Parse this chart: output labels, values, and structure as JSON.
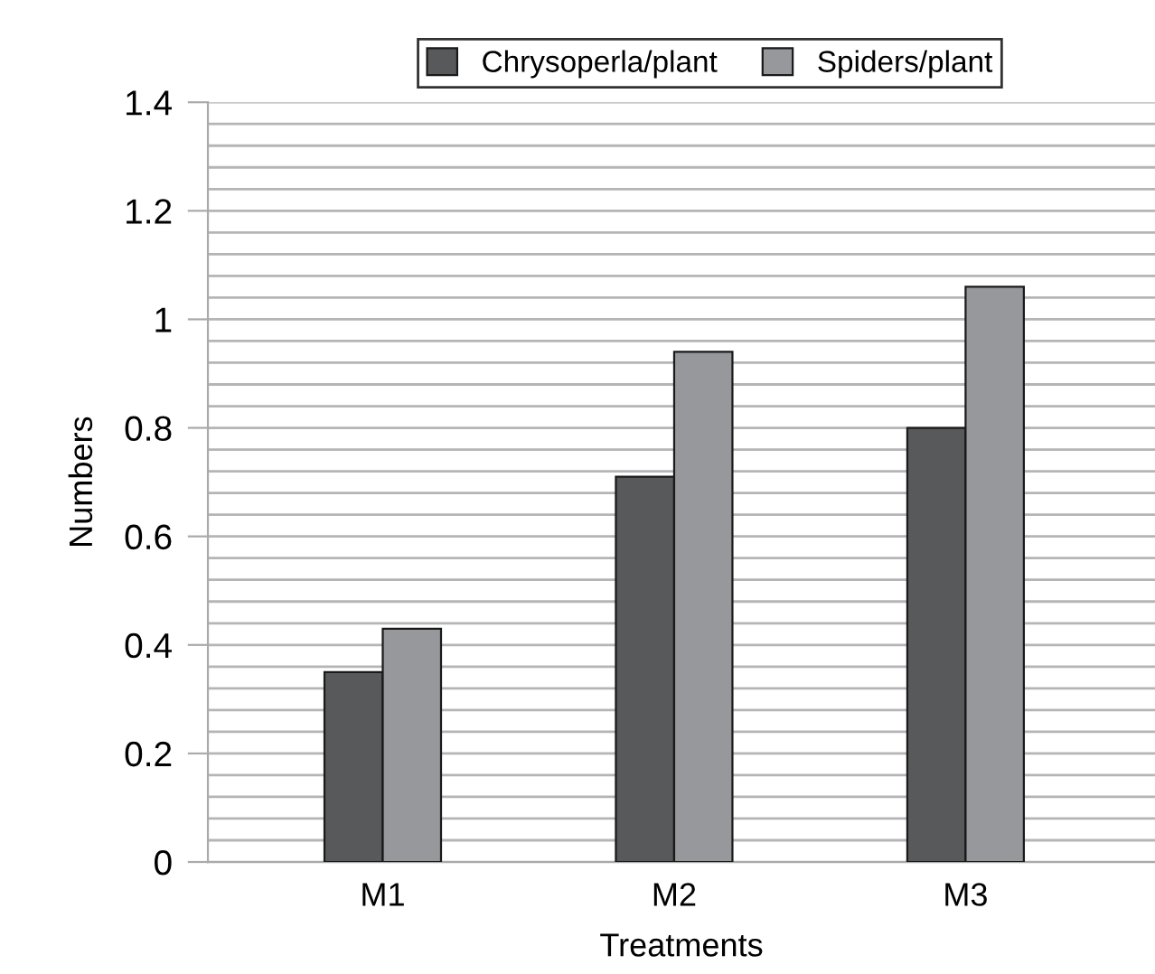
{
  "chart_data": {
    "type": "bar",
    "xlabel": "Treatments",
    "ylabel": "Numbers",
    "categories": [
      "M1",
      "M2",
      "M3"
    ],
    "series": [
      {
        "name": "Chrysoperla/plant",
        "color": "#58595b",
        "values": [
          0.35,
          0.71,
          0.8
        ]
      },
      {
        "name": "Spiders/plant",
        "color": "#97989c",
        "values": [
          0.43,
          0.94,
          1.06
        ]
      }
    ],
    "ylim": [
      0,
      1.4
    ],
    "yticks": [
      0,
      0.2,
      0.4,
      0.6,
      0.8,
      1,
      1.2,
      1.4
    ],
    "grid": "y",
    "legend": "top"
  }
}
